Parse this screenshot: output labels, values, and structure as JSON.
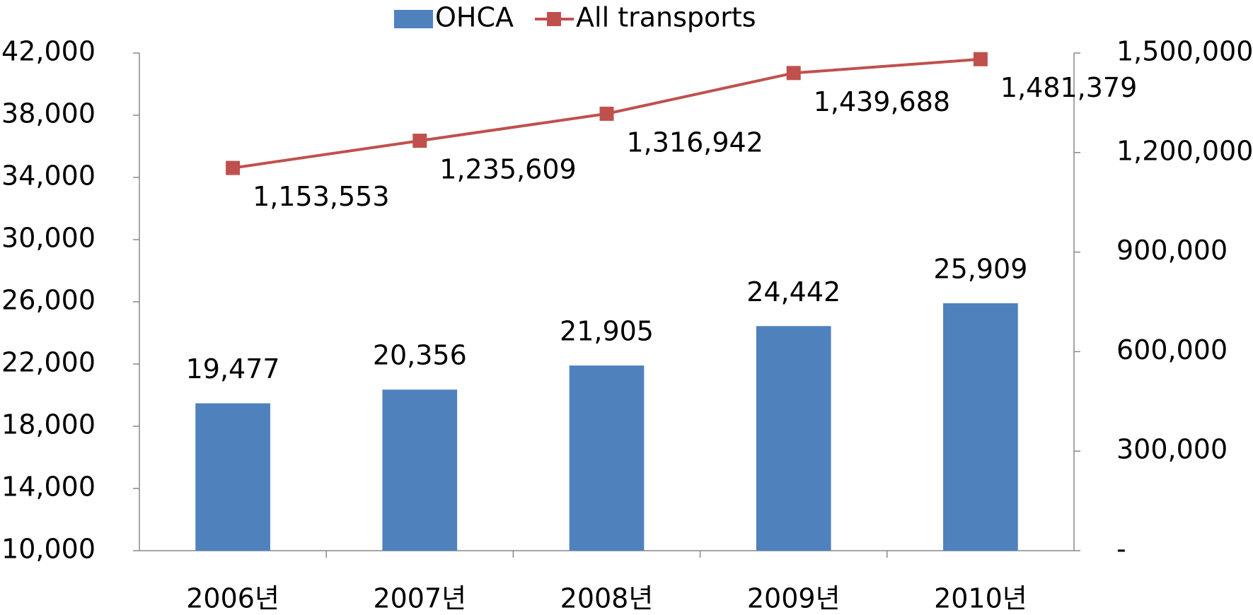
{
  "chart_data": {
    "type": "bar-line",
    "categories": [
      "2006년",
      "2007년",
      "2008년",
      "2009년",
      "2010년"
    ],
    "series": [
      {
        "name": "OHCA",
        "type": "bar",
        "color": "#4f81bd",
        "axis": "y",
        "values": [
          19477,
          20356,
          21905,
          24442,
          25909
        ],
        "value_labels": [
          "19,477",
          "20,356",
          "21,905",
          "24,442",
          "25,909"
        ]
      },
      {
        "name": "All transports",
        "type": "line",
        "color": "#c0504d",
        "axis": "y2",
        "values": [
          1153553,
          1235609,
          1316942,
          1439688,
          1481379
        ],
        "value_labels": [
          "1,153,553",
          "1,235,609",
          "1,316,942",
          "1,439,688",
          "1,481,379"
        ]
      }
    ],
    "ylim": [
      10000,
      42000
    ],
    "yticks": [
      {
        "value": 10000,
        "label": "10,000"
      },
      {
        "value": 14000,
        "label": "14,000"
      },
      {
        "value": 18000,
        "label": "18,000"
      },
      {
        "value": 22000,
        "label": "22,000"
      },
      {
        "value": 26000,
        "label": "26,000"
      },
      {
        "value": 30000,
        "label": "30,000"
      },
      {
        "value": 34000,
        "label": "34,000"
      },
      {
        "value": 38000,
        "label": "38,000"
      },
      {
        "value": 42000,
        "label": "42,000"
      }
    ],
    "y2lim": [
      0,
      1500000
    ],
    "y2ticks": [
      {
        "value": 0,
        "label": "-"
      },
      {
        "value": 300000,
        "label": "300,000"
      },
      {
        "value": 600000,
        "label": "600,000"
      },
      {
        "value": 900000,
        "label": "900,000"
      },
      {
        "value": 1200000,
        "label": "1,200,000"
      },
      {
        "value": 1500000,
        "label": "1,500,000"
      }
    ],
    "legend": "top",
    "grid": false
  }
}
